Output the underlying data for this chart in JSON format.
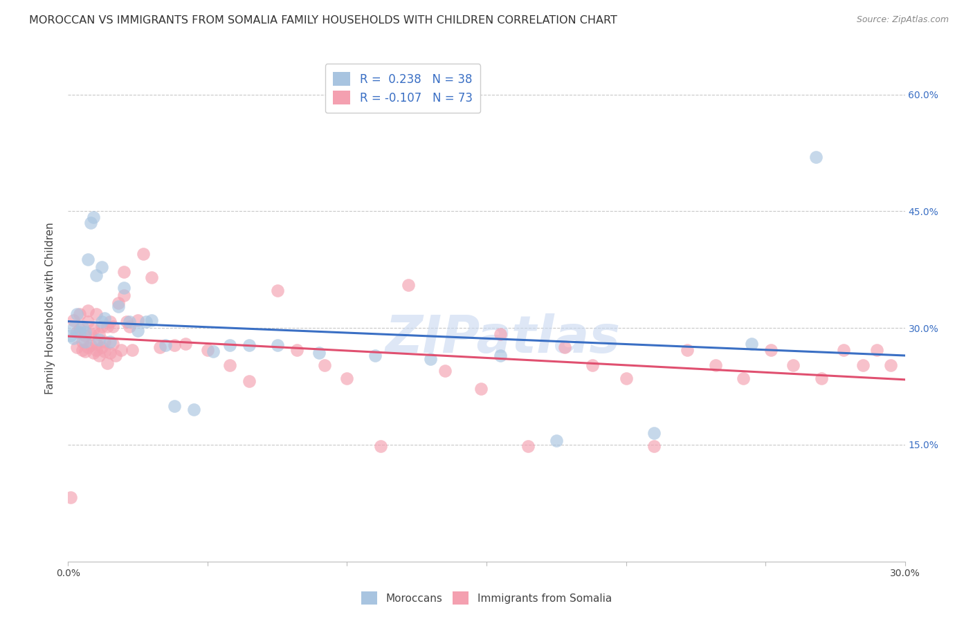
{
  "title": "MOROCCAN VS IMMIGRANTS FROM SOMALIA FAMILY HOUSEHOLDS WITH CHILDREN CORRELATION CHART",
  "source": "Source: ZipAtlas.com",
  "ylabel": "Family Households with Children",
  "xlabel_moroccan": "Moroccans",
  "xlabel_somalia": "Immigrants from Somalia",
  "xlim": [
    0.0,
    0.3
  ],
  "ylim": [
    0.0,
    0.65
  ],
  "ytick_positions": [
    0.0,
    0.15,
    0.3,
    0.45,
    0.6
  ],
  "xtick_positions": [
    0.0,
    0.05,
    0.1,
    0.15,
    0.2,
    0.25,
    0.3
  ],
  "xtick_labels": [
    "0.0%",
    "",
    "",
    "",
    "",
    "",
    "30.0%"
  ],
  "ytick_labels_right": [
    "",
    "15.0%",
    "30.0%",
    "45.0%",
    "60.0%"
  ],
  "R_moroccan": 0.238,
  "N_moroccan": 38,
  "R_somalia": -0.107,
  "N_somalia": 73,
  "color_moroccan": "#a8c4e0",
  "color_somalia": "#f4a0b0",
  "line_color_moroccan": "#3a6fc4",
  "line_color_somalia": "#e05070",
  "moroccan_x": [
    0.001,
    0.002,
    0.002,
    0.003,
    0.004,
    0.005,
    0.006,
    0.006,
    0.007,
    0.008,
    0.009,
    0.01,
    0.011,
    0.012,
    0.012,
    0.013,
    0.015,
    0.018,
    0.02,
    0.022,
    0.025,
    0.028,
    0.03,
    0.035,
    0.038,
    0.045,
    0.052,
    0.058,
    0.065,
    0.075,
    0.09,
    0.11,
    0.13,
    0.155,
    0.175,
    0.21,
    0.245,
    0.268
  ],
  "moroccan_y": [
    0.29,
    0.287,
    0.3,
    0.318,
    0.295,
    0.302,
    0.282,
    0.295,
    0.388,
    0.435,
    0.442,
    0.368,
    0.285,
    0.308,
    0.378,
    0.313,
    0.282,
    0.328,
    0.352,
    0.308,
    0.297,
    0.308,
    0.31,
    0.278,
    0.2,
    0.195,
    0.27,
    0.278,
    0.278,
    0.278,
    0.268,
    0.265,
    0.26,
    0.265,
    0.155,
    0.165,
    0.28,
    0.52
  ],
  "somalia_x": [
    0.001,
    0.002,
    0.003,
    0.003,
    0.004,
    0.004,
    0.005,
    0.005,
    0.006,
    0.006,
    0.007,
    0.007,
    0.007,
    0.008,
    0.008,
    0.009,
    0.009,
    0.01,
    0.01,
    0.01,
    0.011,
    0.011,
    0.012,
    0.012,
    0.013,
    0.013,
    0.014,
    0.014,
    0.015,
    0.015,
    0.016,
    0.016,
    0.017,
    0.018,
    0.019,
    0.02,
    0.02,
    0.021,
    0.022,
    0.023,
    0.025,
    0.027,
    0.03,
    0.033,
    0.038,
    0.042,
    0.05,
    0.058,
    0.065,
    0.075,
    0.082,
    0.092,
    0.1,
    0.112,
    0.122,
    0.135,
    0.148,
    0.155,
    0.165,
    0.178,
    0.188,
    0.2,
    0.21,
    0.222,
    0.232,
    0.242,
    0.252,
    0.26,
    0.27,
    0.278,
    0.285,
    0.29,
    0.295
  ],
  "somalia_y": [
    0.082,
    0.31,
    0.295,
    0.275,
    0.298,
    0.318,
    0.282,
    0.272,
    0.27,
    0.29,
    0.322,
    0.308,
    0.275,
    0.278,
    0.292,
    0.268,
    0.298,
    0.272,
    0.318,
    0.28,
    0.265,
    0.292,
    0.302,
    0.275,
    0.282,
    0.27,
    0.302,
    0.255,
    0.268,
    0.308,
    0.302,
    0.28,
    0.265,
    0.332,
    0.272,
    0.372,
    0.342,
    0.308,
    0.302,
    0.272,
    0.31,
    0.395,
    0.365,
    0.275,
    0.278,
    0.28,
    0.272,
    0.252,
    0.232,
    0.348,
    0.272,
    0.252,
    0.235,
    0.148,
    0.355,
    0.245,
    0.222,
    0.292,
    0.148,
    0.275,
    0.252,
    0.235,
    0.148,
    0.272,
    0.252,
    0.235,
    0.272,
    0.252,
    0.235,
    0.272,
    0.252,
    0.272,
    0.252
  ],
  "background_color": "#ffffff",
  "grid_color": "#c8c8c8",
  "watermark_text": "ZIPatlas",
  "watermark_color": "#c8d8f0"
}
